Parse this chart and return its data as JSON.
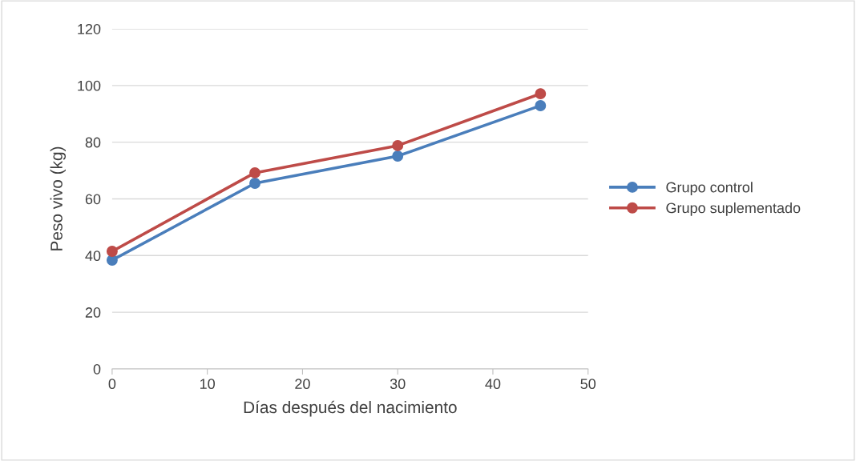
{
  "chart_data": {
    "type": "line",
    "xlabel": "Días después del nacimiento",
    "ylabel": "Peso vivo (kg)",
    "x": [
      0,
      15,
      30,
      45
    ],
    "series": [
      {
        "name": "Grupo control",
        "color": "#4a7ebb",
        "values": [
          38.4,
          65.5,
          75.1,
          92.9
        ]
      },
      {
        "name": "Grupo suplementado",
        "color": "#be4b48",
        "values": [
          41.5,
          69.2,
          78.8,
          97.1
        ]
      }
    ],
    "xlim": [
      0,
      50
    ],
    "xticks": [
      0,
      10,
      20,
      30,
      40,
      50
    ],
    "ylim": [
      0,
      120
    ],
    "yticks": [
      0,
      20,
      40,
      60,
      80,
      100,
      120
    ],
    "grid": "y",
    "legend": "right",
    "marker": "circle",
    "line_style": "solid"
  }
}
